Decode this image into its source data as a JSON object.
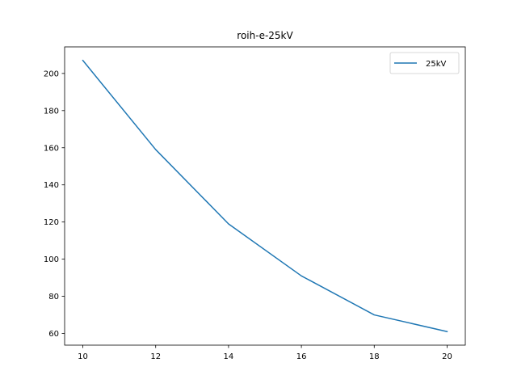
{
  "chart_data": {
    "type": "line",
    "title": "roih-e-25kV",
    "xlabel": "",
    "ylabel": "",
    "x": [
      10,
      12,
      14,
      16,
      18,
      20
    ],
    "series": [
      {
        "name": "25kV",
        "color": "#1f77b4",
        "values": [
          207,
          159,
          119,
          91,
          70,
          61
        ]
      }
    ],
    "xlim": [
      9.5,
      20.5
    ],
    "ylim": [
      53.7,
      214.3
    ],
    "xticks": [
      10,
      12,
      14,
      16,
      18,
      20
    ],
    "yticks": [
      60,
      80,
      100,
      120,
      140,
      160,
      180,
      200
    ],
    "grid": false,
    "legend": {
      "position": "top-right"
    }
  }
}
